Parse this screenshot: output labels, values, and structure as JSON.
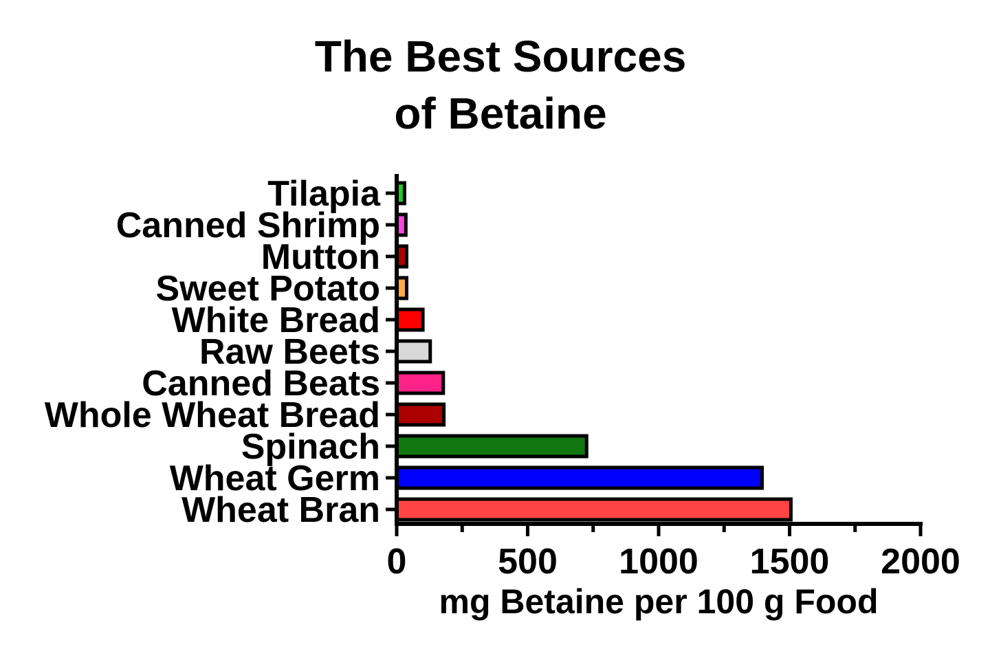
{
  "chart_data": {
    "type": "bar",
    "orientation": "horizontal",
    "title_lines": [
      "The Best Sources",
      "of Betaine"
    ],
    "xlabel": "mg Betaine per 100 g Food",
    "ylabel": "",
    "xlim": [
      0,
      2000
    ],
    "x_ticks": [
      "0",
      "500",
      "1000",
      "1500",
      "2000"
    ],
    "categories": [
      "Tilapia",
      "Canned Shrimp",
      "Mutton",
      "Sweet Potato",
      "White Bread",
      "Raw Beets",
      "Canned Beats",
      "Whole Wheat Bread",
      "Spinach",
      "Wheat Germ",
      "Wheat Bran"
    ],
    "values": [
      30,
      35,
      38,
      38,
      100,
      128,
      178,
      180,
      725,
      1395,
      1505
    ],
    "colors": [
      "#22cc22",
      "#ff44dd",
      "#aa0000",
      "#ffaa44",
      "#ff0000",
      "#d8d8d8",
      "#ff2288",
      "#aa0000",
      "#117711",
      "#0000ff",
      "#ff4444"
    ],
    "grid": false,
    "legend": "none"
  }
}
